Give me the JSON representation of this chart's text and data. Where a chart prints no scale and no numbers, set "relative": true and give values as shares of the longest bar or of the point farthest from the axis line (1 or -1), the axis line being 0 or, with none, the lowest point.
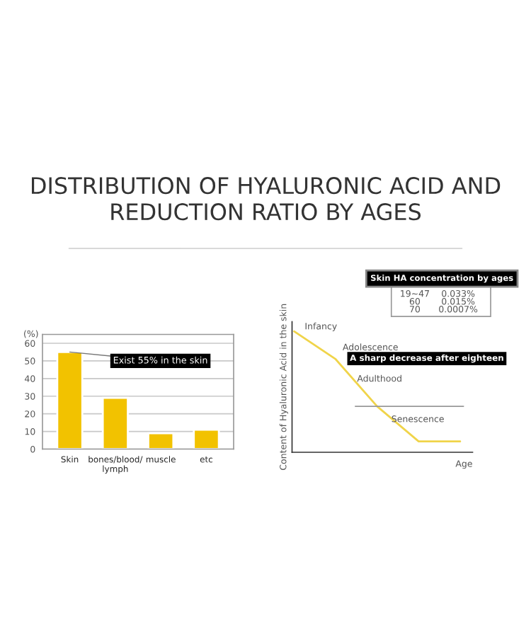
{
  "chart_data": [
    {
      "type": "bar",
      "title": "DISTRIBUTION OF HYALURONIC ACID AND REDUCTION RATIO BY AGES",
      "ylabel": "(%)",
      "categories": [
        "Skin",
        "bones/blood/\nlymph",
        "muscle",
        "etc"
      ],
      "values": [
        55,
        29,
        9,
        11
      ],
      "color": "#f2c200",
      "ylim": [
        0,
        65
      ],
      "yticks": [
        0,
        10,
        20,
        30,
        40,
        50,
        60
      ],
      "grid": "y",
      "annotations": [
        {
          "text": "Exist 55% in the skin",
          "x": "Skin",
          "y": 55
        }
      ]
    },
    {
      "type": "line",
      "relative": true,
      "xlabel": "Age",
      "ylabel": "Content of Hyaluronic Acid in the skin",
      "categories": [
        null,
        null,
        null,
        null,
        null
      ],
      "series": [
        {
          "color": "#f0d44a",
          "values": [
            1,
            0.77,
            0.38,
            0.09,
            0.09
          ]
        }
      ],
      "marker": "none",
      "line_style": "solid",
      "tick_labels": false,
      "ref_lines": [
        {
          "axis": "y",
          "value": 0.38,
          "color": "#999999"
        }
      ],
      "annotations": [
        "Infancy",
        "Adolescence",
        "A sharp decrease after eighteen",
        "Adulthood",
        "Senescence",
        "Skin HA concentration by ages",
        "19~47",
        "0.033%",
        "60",
        "0.015%",
        "70",
        "0.0007%"
      ]
    }
  ]
}
